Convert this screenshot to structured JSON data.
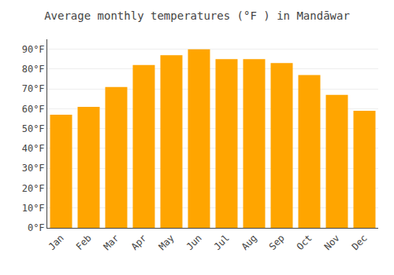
{
  "chart_data": {
    "type": "bar",
    "title": "Average monthly temperatures (°F ) in Mandāwar",
    "categories": [
      "Jan",
      "Feb",
      "Mar",
      "Apr",
      "May",
      "Jun",
      "Jul",
      "Aug",
      "Sep",
      "Oct",
      "Nov",
      "Dec"
    ],
    "values": [
      57,
      61,
      71,
      82,
      87,
      90,
      85,
      85,
      83,
      77,
      67,
      59
    ],
    "color": "#FFA500",
    "ylim": [
      0,
      95
    ],
    "yticks": [
      {
        "value": 0,
        "label": "0°F"
      },
      {
        "value": 10,
        "label": "10°F"
      },
      {
        "value": 20,
        "label": "20°F"
      },
      {
        "value": 30,
        "label": "30°F"
      },
      {
        "value": 40,
        "label": "40°F"
      },
      {
        "value": 50,
        "label": "50°F"
      },
      {
        "value": 60,
        "label": "60°F"
      },
      {
        "value": 70,
        "label": "70°F"
      },
      {
        "value": 80,
        "label": "80°F"
      },
      {
        "value": 90,
        "label": "90°F"
      }
    ],
    "grid": true
  }
}
